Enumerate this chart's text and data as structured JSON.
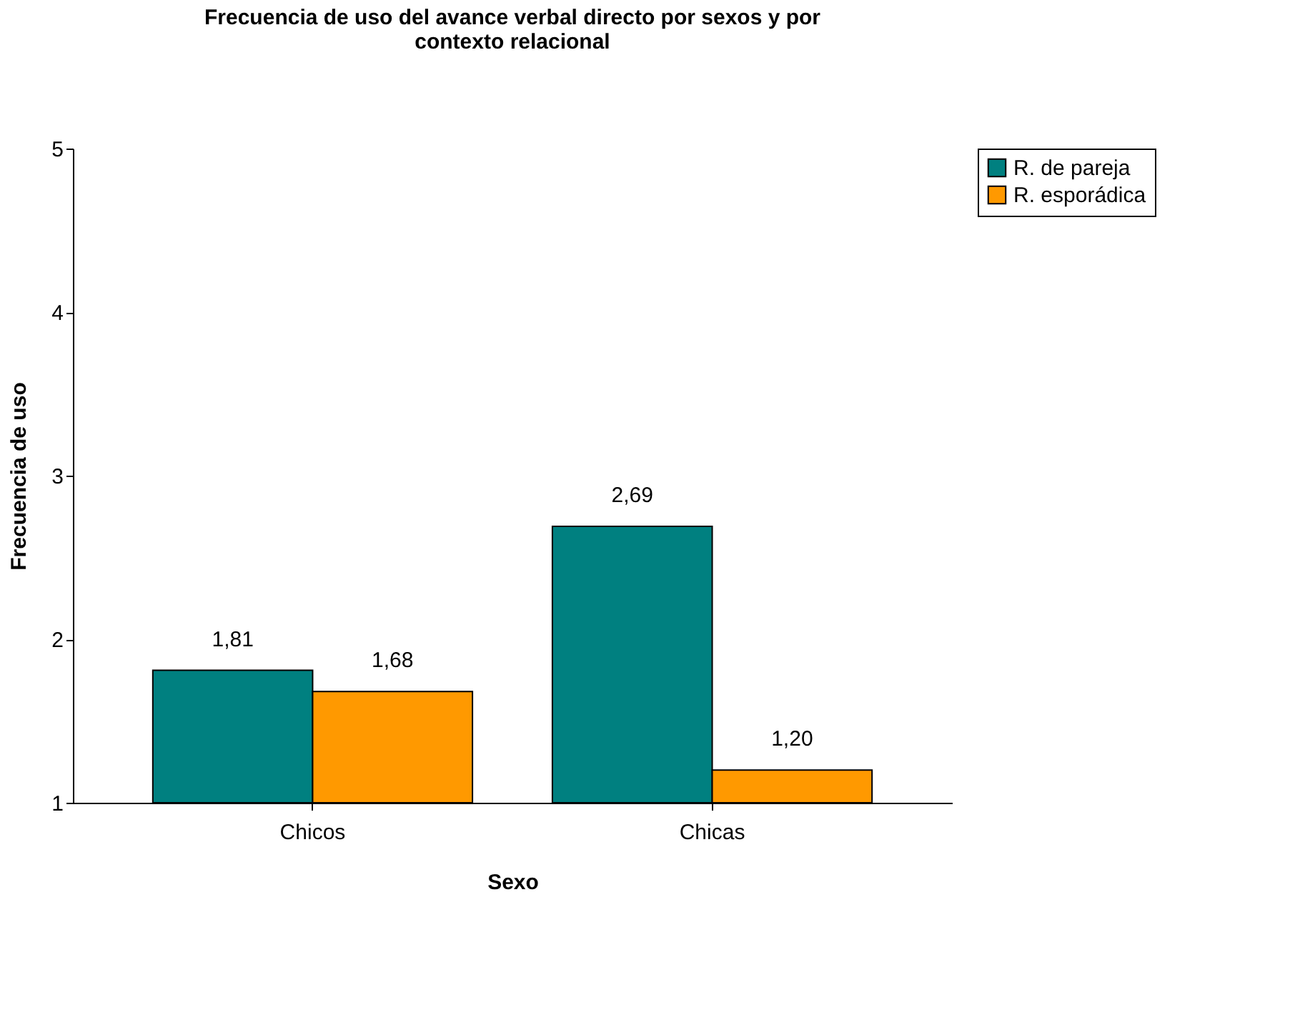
{
  "chart_data": {
    "type": "bar",
    "title": "Frecuencia de uso del avance verbal directo por sexos y por contexto relacional",
    "xlabel": "Sexo",
    "ylabel": "Frecuencia de uso",
    "categories": [
      "Chicos",
      "Chicas"
    ],
    "series": [
      {
        "name": "R. de pareja",
        "color": "#008080",
        "values": [
          1.81,
          2.69
        ],
        "value_labels": [
          "1,81",
          "2,69"
        ]
      },
      {
        "name": "R. esporádica",
        "color": "#ff9900",
        "values": [
          1.68,
          1.2
        ],
        "value_labels": [
          "1,68",
          "1,20"
        ]
      }
    ],
    "ylim": [
      1,
      5
    ],
    "yticks": [
      1,
      2,
      3,
      4,
      5
    ],
    "grid": false,
    "legend": "right"
  }
}
